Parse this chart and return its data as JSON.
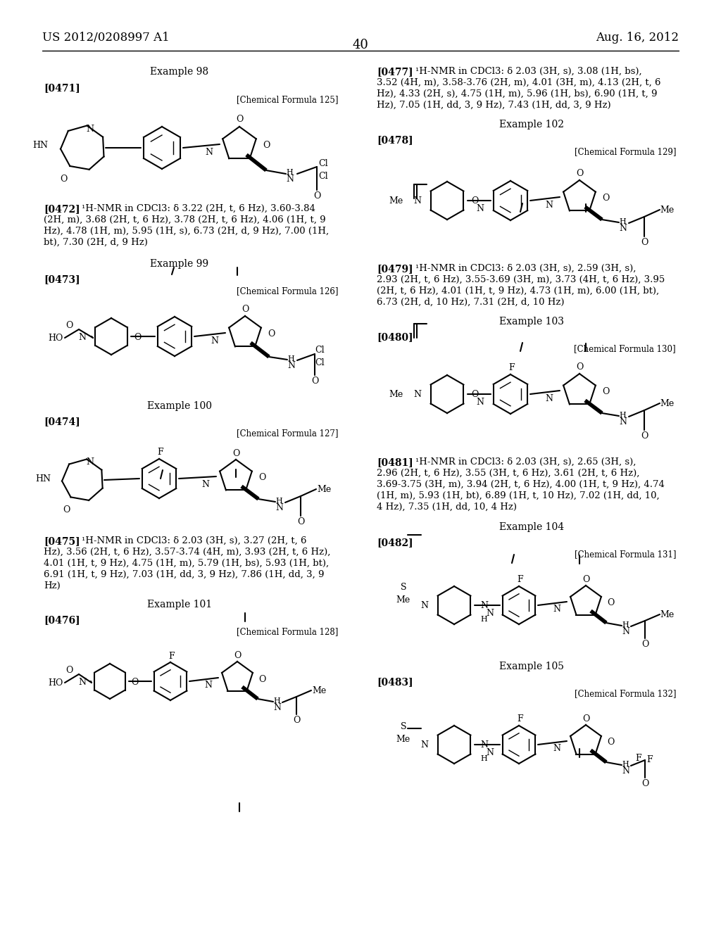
{
  "page_header_left": "US 2012/0208997 A1",
  "page_header_right": "Aug. 16, 2012",
  "page_number": "40",
  "background_color": "#ffffff",
  "text_color": "#000000"
}
